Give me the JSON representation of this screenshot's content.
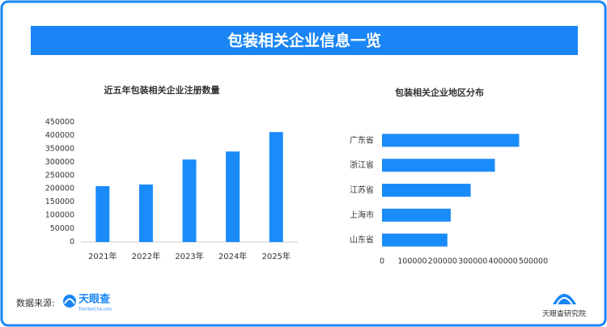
{
  "header": {
    "title": "包装相关企业信息一览"
  },
  "footer": {
    "source_label": "数据来源:",
    "logo_text": "天眼查",
    "logo_url": "TianYanCha.com",
    "institute": "天眼查研究院"
  },
  "chart_data": [
    {
      "type": "bar",
      "title": "近五年包装相关企业注册数量",
      "categories": [
        "2021年",
        "2022年",
        "2023年",
        "2024年",
        "2025年"
      ],
      "values": [
        210000,
        216000,
        310000,
        340000,
        413000
      ],
      "color": "#1a8cfa",
      "ylim": [
        0,
        450000
      ],
      "yticks": [
        0,
        50000,
        100000,
        150000,
        200000,
        250000,
        300000,
        350000,
        400000,
        450000
      ]
    },
    {
      "type": "barh",
      "title": "包装相关企业地区分布",
      "categories": [
        "广东省",
        "浙江省",
        "江苏省",
        "上海市",
        "山东省"
      ],
      "values": [
        453000,
        373000,
        293000,
        227000,
        216000
      ],
      "color": "#1a8cfa",
      "xlim": [
        0,
        500000
      ],
      "xticks": [
        0,
        100000,
        200000,
        300000,
        400000,
        500000
      ]
    }
  ]
}
